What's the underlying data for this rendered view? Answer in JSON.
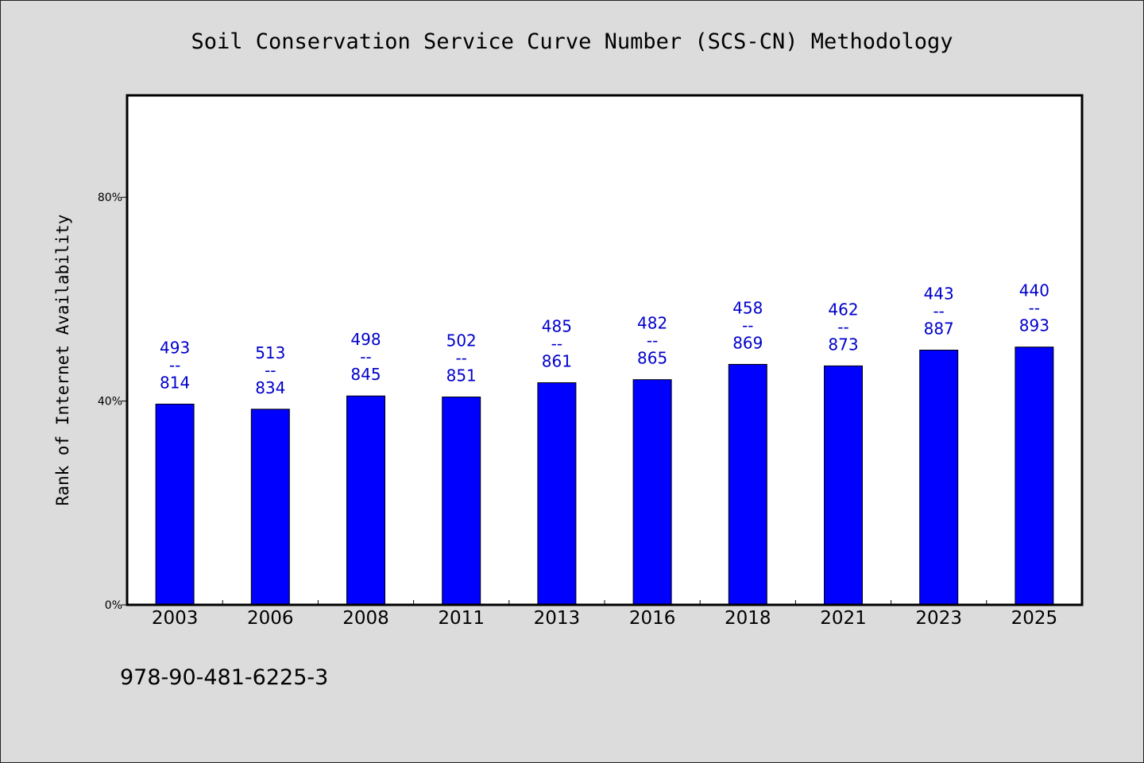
{
  "chart": {
    "title": "Soil Conservation Service Curve Number (SCS-CN) Methodology",
    "ylabel": "Rank of Internet Availability",
    "footer_code": "978-90-481-6225-3"
  },
  "colors": {
    "background": "#dcdcdc",
    "plot_background": "#ffffff",
    "bar_fill": "#0000ff",
    "bar_stroke": "#000000",
    "label_text": "#0000cc"
  },
  "chart_data": {
    "type": "bar",
    "title": "Soil Conservation Service Curve Number (SCS-CN) Methodology",
    "xlabel": "",
    "ylabel": "Rank of Internet Availability",
    "ylim": [
      0,
      100
    ],
    "ytick_values": [
      0,
      40,
      80
    ],
    "yticks": [
      "0%",
      "40%",
      "80%"
    ],
    "grid": false,
    "categories": [
      "2003",
      "2006",
      "2008",
      "2011",
      "2013",
      "2016",
      "2018",
      "2021",
      "2023",
      "2025"
    ],
    "values": [
      39.4,
      38.4,
      41.0,
      40.8,
      43.6,
      44.2,
      47.2,
      46.9,
      50.0,
      50.6
    ],
    "bar_labels": [
      {
        "top": "493",
        "sep": "--",
        "bottom": "814"
      },
      {
        "top": "513",
        "sep": "--",
        "bottom": "834"
      },
      {
        "top": "498",
        "sep": "--",
        "bottom": "845"
      },
      {
        "top": "502",
        "sep": "--",
        "bottom": "851"
      },
      {
        "top": "485",
        "sep": "--",
        "bottom": "861"
      },
      {
        "top": "482",
        "sep": "--",
        "bottom": "865"
      },
      {
        "top": "458",
        "sep": "--",
        "bottom": "869"
      },
      {
        "top": "462",
        "sep": "--",
        "bottom": "873"
      },
      {
        "top": "443",
        "sep": "--",
        "bottom": "887"
      },
      {
        "top": "440",
        "sep": "--",
        "bottom": "893"
      }
    ]
  }
}
